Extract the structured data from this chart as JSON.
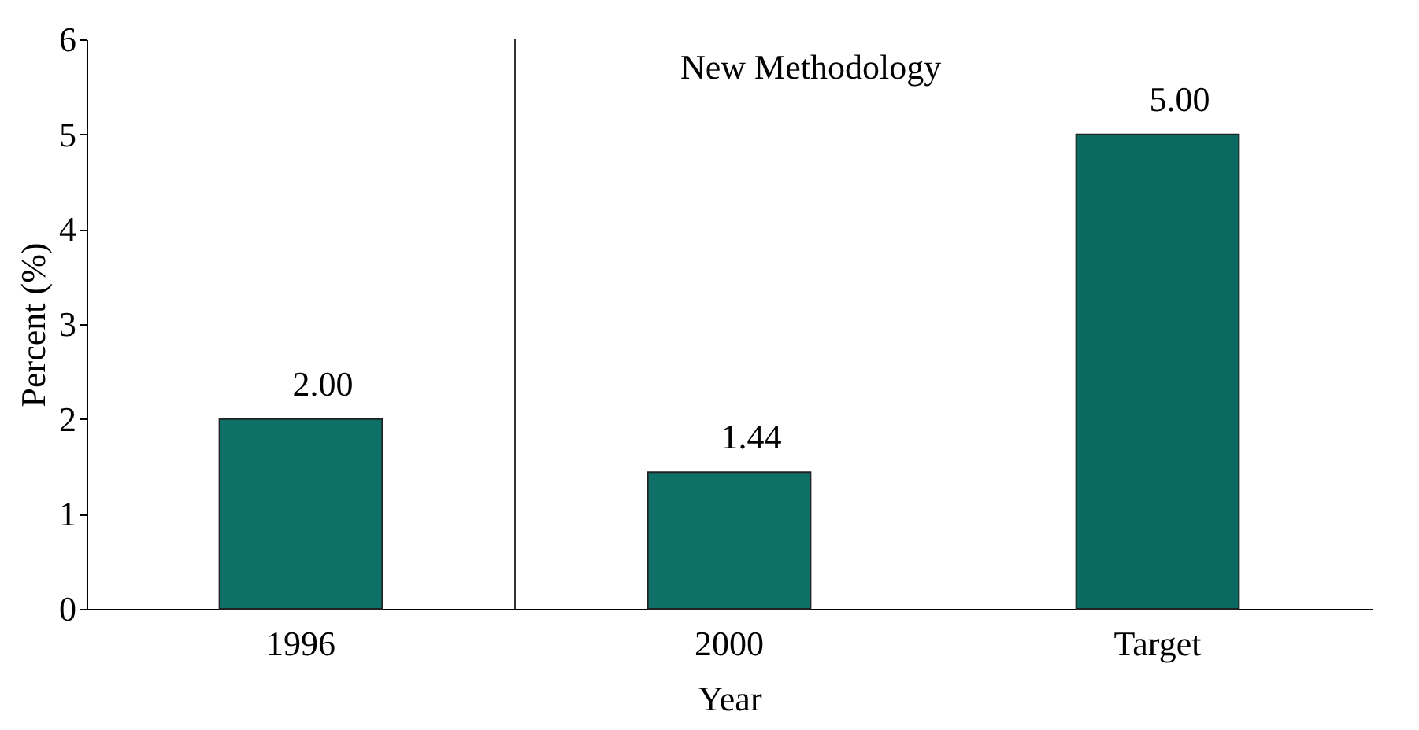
{
  "chart_data": {
    "type": "bar",
    "xlabel": "Year",
    "ylabel": "Percent (%)",
    "categories": [
      "1996",
      "2000",
      "Target"
    ],
    "values": [
      2.0,
      1.44,
      5.0
    ],
    "colors": [
      "#0f7068",
      "#0f7068",
      "#0a6a62"
    ],
    "value_labels": [
      "2.00",
      "1.44",
      "5.00"
    ],
    "ylim": [
      0,
      6
    ],
    "yticks": [
      0,
      1,
      2,
      3,
      4,
      5,
      6
    ],
    "annotations": [
      "New Methodology"
    ]
  }
}
